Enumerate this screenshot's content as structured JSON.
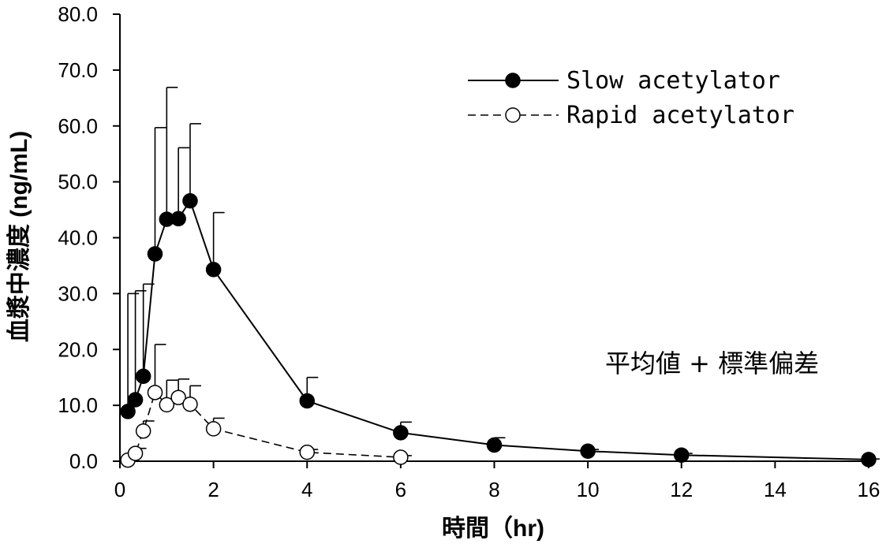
{
  "chart_data": {
    "type": "line",
    "title": "",
    "xlabel": "時間（hr)",
    "ylabel": "血漿中濃度 (ng/mL)",
    "xlim": [
      0,
      16
    ],
    "ylim": [
      0,
      80
    ],
    "xticks": [
      0,
      2,
      4,
      6,
      8,
      10,
      12,
      14,
      16
    ],
    "xtick_labels": [
      "0",
      "2",
      "4",
      "6",
      "8",
      "10",
      "12",
      "14",
      "16"
    ],
    "yticks": [
      0,
      10,
      20,
      30,
      40,
      50,
      60,
      70,
      80
    ],
    "ytick_labels": [
      "0.0",
      "10.0",
      "20.0",
      "30.0",
      "40.0",
      "50.0",
      "60.0",
      "70.0",
      "80.0"
    ],
    "grid": false,
    "legend_position": "top-right",
    "annotation": "平均値 + 標準偏差",
    "series": [
      {
        "name": "Slow acetylator",
        "marker": "filled-circle",
        "line_style": "solid",
        "x": [
          0.17,
          0.33,
          0.5,
          0.75,
          1.0,
          1.25,
          1.5,
          2,
          4,
          6,
          8,
          10,
          12,
          16
        ],
        "y": [
          8.9,
          11.0,
          15.2,
          37.1,
          43.3,
          43.4,
          46.6,
          34.3,
          10.8,
          5.1,
          2.9,
          1.8,
          1.1,
          0.3
        ],
        "error_plus": [
          21.1,
          19.5,
          16.5,
          22.6,
          23.6,
          12.7,
          13.8,
          10.2,
          4.2,
          1.9,
          1.3,
          0.3,
          0.3,
          0.1
        ]
      },
      {
        "name": "Rapid acetylator",
        "marker": "open-circle",
        "line_style": "dashed",
        "x": [
          0.17,
          0.33,
          0.5,
          0.75,
          1.0,
          1.25,
          1.5,
          2,
          4,
          6
        ],
        "y": [
          0.2,
          1.4,
          5.4,
          12.3,
          10.1,
          11.4,
          10.2,
          5.8,
          1.6,
          0.7
        ],
        "error_plus": [
          0.3,
          0.9,
          1.8,
          8.6,
          4.4,
          3.3,
          3.3,
          1.9,
          0.5,
          0.3
        ]
      }
    ]
  }
}
